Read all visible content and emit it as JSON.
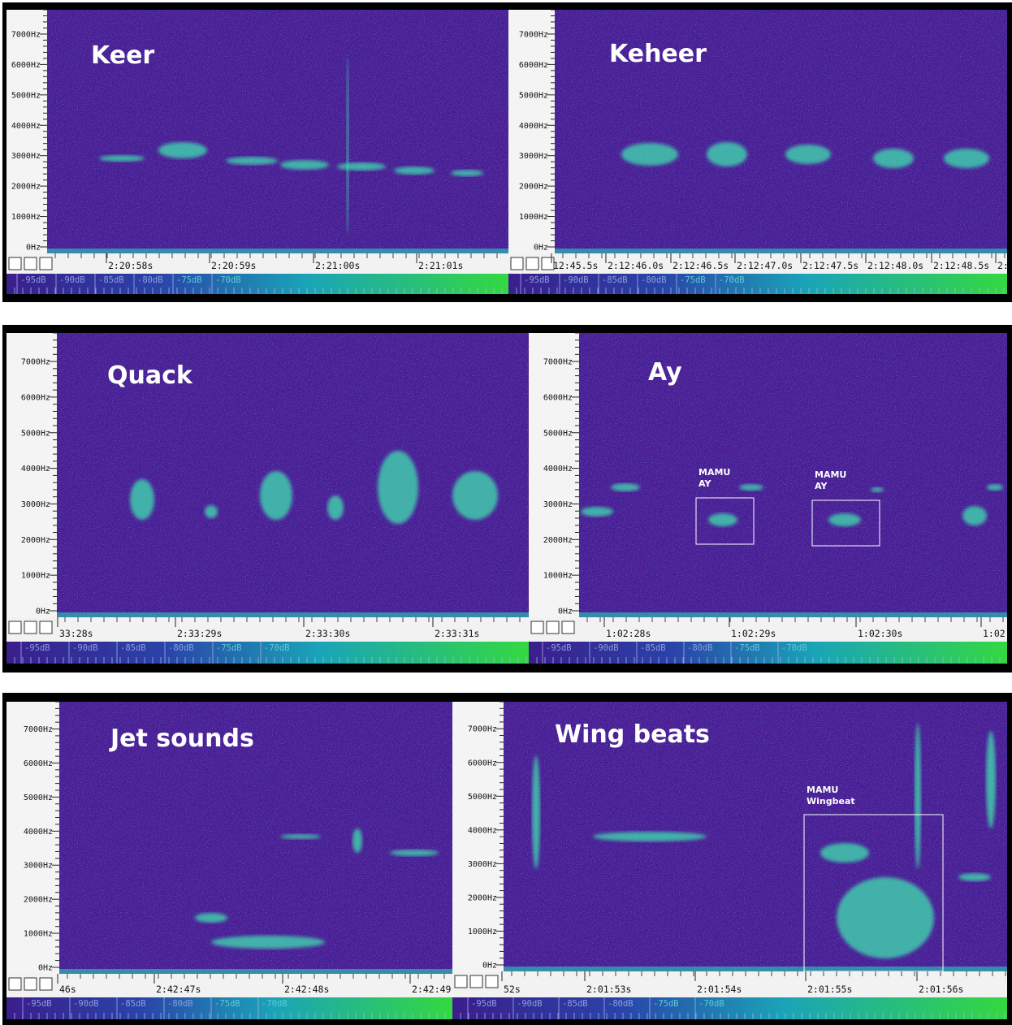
{
  "freq_labels": [
    "7000Hz",
    "6000Hz",
    "5000Hz",
    "4000Hz",
    "3000Hz",
    "2000Hz",
    "1000Hz",
    "0Hz"
  ],
  "db_labels": [
    "-95dB",
    "-90dB",
    "-85dB",
    "-80dB",
    "-75dB",
    "-70dB"
  ],
  "panels": [
    {
      "title": "Keer",
      "time_labels": [
        "2:20:58s",
        "2:20:59s",
        "2:21:00s",
        "2:21:01s"
      ]
    },
    {
      "title": "Keheer",
      "time_labels": [
        "12:45.5s",
        "2:12:46.0s",
        "2:12:46.5s",
        "2:12:47.0s",
        "2:12:47.5s",
        "2:12:48.0s",
        "2:12:48.5s",
        "2:"
      ]
    },
    {
      "title": "Quack",
      "time_labels": [
        "33:28s",
        "2:33:29s",
        "2:33:30s",
        "2:33:31s"
      ]
    },
    {
      "title": "Ay",
      "time_labels": [
        "1:02:28s",
        "1:02:29s",
        "1:02:30s",
        "1:02"
      ],
      "annotations": [
        {
          "lines": [
            "MAMU",
            "AY"
          ]
        },
        {
          "lines": [
            "MAMU",
            "AY"
          ]
        }
      ]
    },
    {
      "title": "Jet sounds",
      "time_labels": [
        "46s",
        "2:42:47s",
        "2:42:48s",
        "2:42:49"
      ]
    },
    {
      "title": "Wing beats",
      "time_labels": [
        "52s",
        "2:01:53s",
        "2:01:54s",
        "2:01:55s",
        "2:01:56s"
      ],
      "annotations": [
        {
          "lines": [
            "MAMU",
            "Wingbeat"
          ]
        }
      ]
    }
  ]
}
